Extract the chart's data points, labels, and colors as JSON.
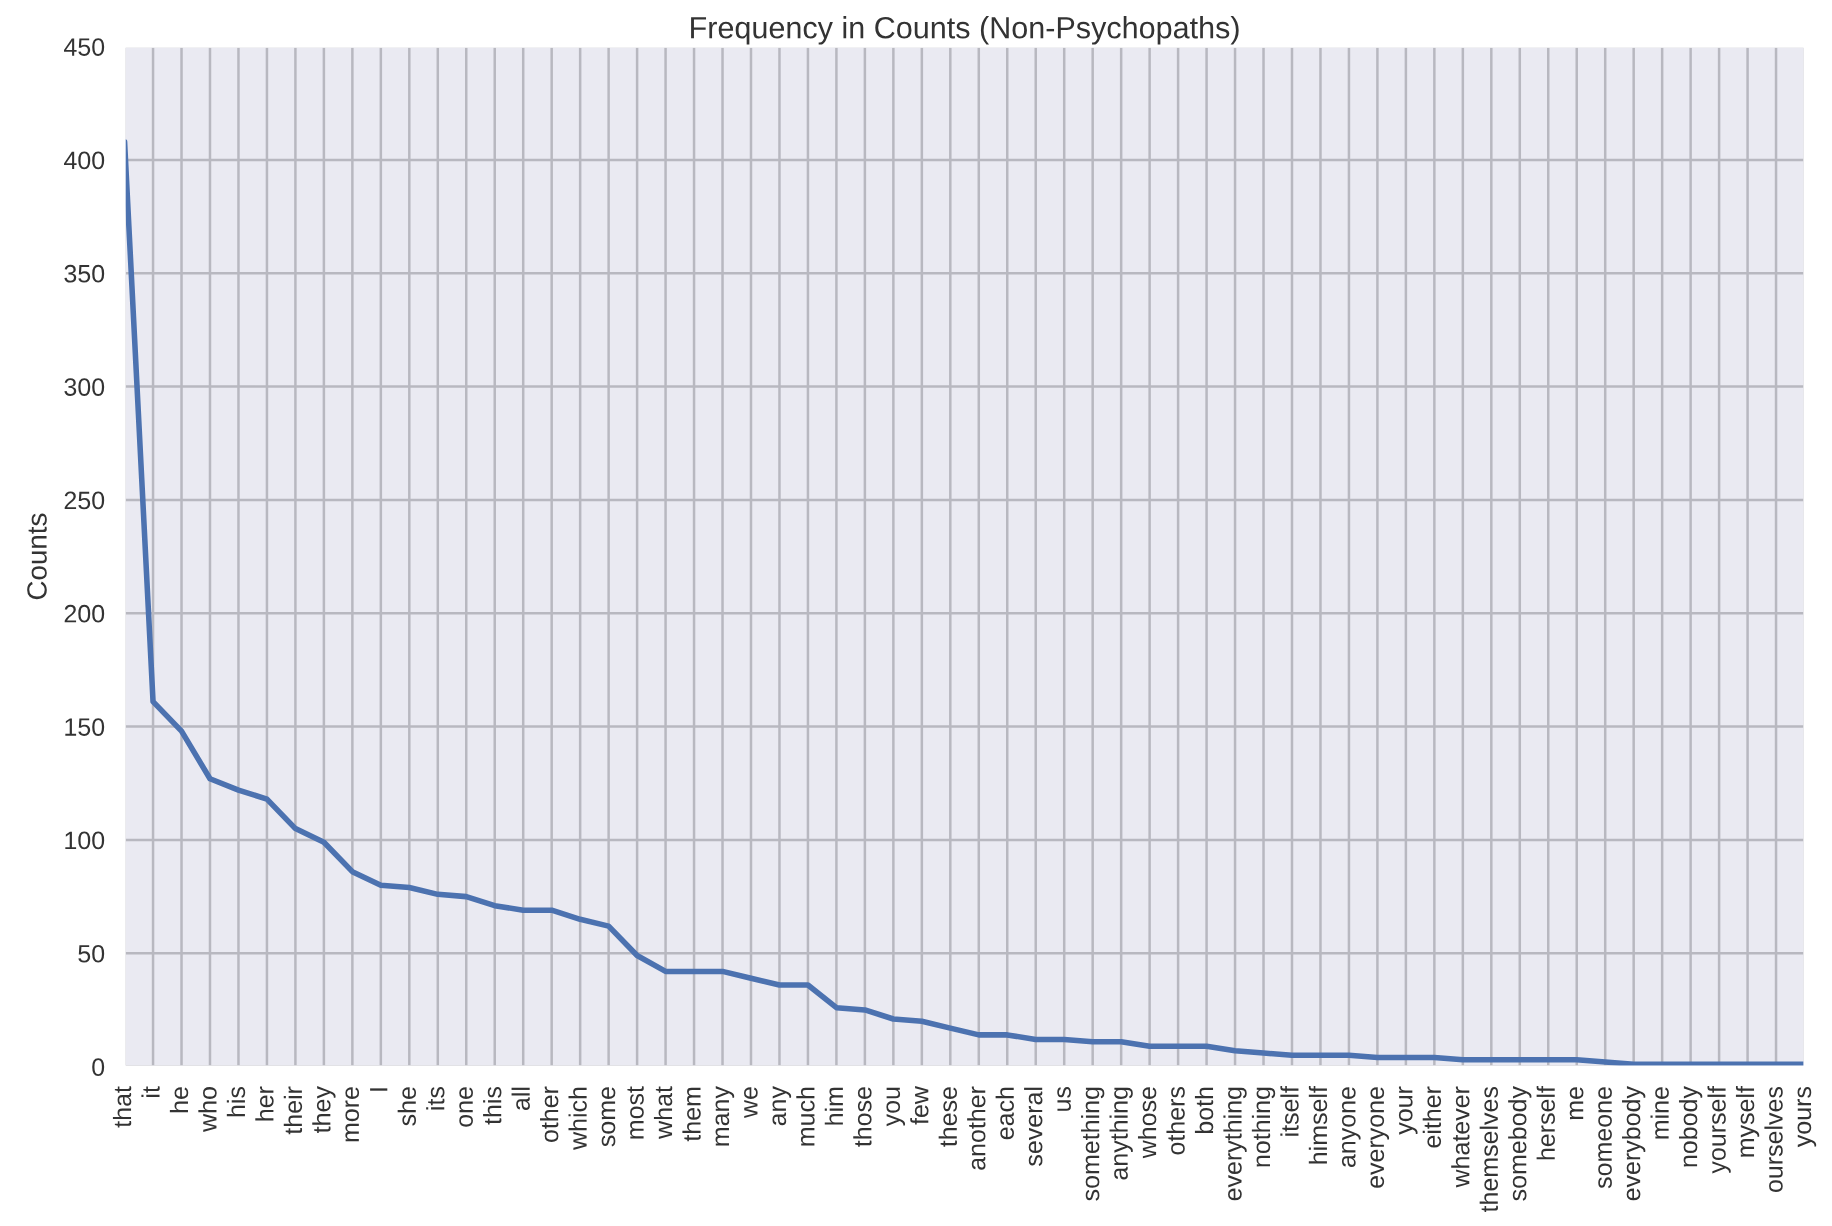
{
  "chart_data": {
    "type": "line",
    "title": "Frequency in Counts (Non-Psychopaths)",
    "ylabel": "Counts",
    "categories": [
      "that",
      "it",
      "he",
      "who",
      "his",
      "her",
      "their",
      "they",
      "more",
      "I",
      "she",
      "its",
      "one",
      "this",
      "all",
      "other",
      "which",
      "some",
      "most",
      "what",
      "them",
      "many",
      "we",
      "any",
      "much",
      "him",
      "those",
      "you",
      "few",
      "these",
      "another",
      "each",
      "several",
      "us",
      "something",
      "anything",
      "whose",
      "others",
      "both",
      "everything",
      "nothing",
      "itself",
      "himself",
      "anyone",
      "everyone",
      "your",
      "either",
      "whatever",
      "themselves",
      "somebody",
      "herself",
      "me",
      "someone",
      "everybody",
      "mine",
      "nobody",
      "yourself",
      "myself",
      "ourselves",
      "yours"
    ],
    "series": [
      {
        "color": "#4c72b0",
        "values": [
          408,
          161,
          148,
          127,
          122,
          118,
          105,
          99,
          86,
          80,
          79,
          76,
          75,
          71,
          69,
          69,
          65,
          62,
          49,
          42,
          42,
          42,
          39,
          36,
          36,
          26,
          25,
          21,
          20,
          17,
          14,
          14,
          12,
          12,
          11,
          11,
          9,
          9,
          9,
          7,
          6,
          5,
          5,
          5,
          4,
          4,
          4,
          3,
          3,
          3,
          3,
          3,
          2,
          1,
          1,
          1,
          1,
          1,
          1,
          1
        ]
      }
    ],
    "ylim": [
      0,
      450
    ],
    "yticks": [
      0,
      50,
      100,
      150,
      200,
      250,
      300,
      350,
      400,
      450
    ],
    "grid": true,
    "line_style": "solid"
  }
}
